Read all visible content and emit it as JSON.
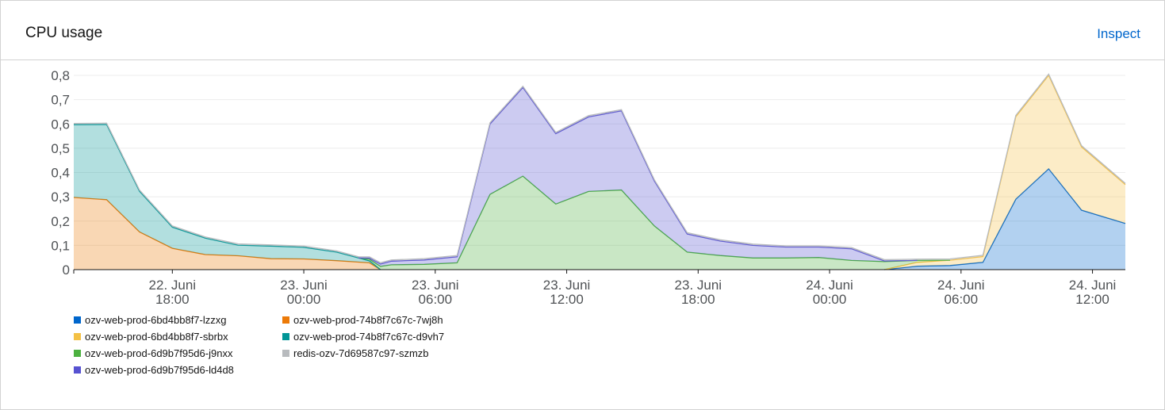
{
  "card": {
    "title": "CPU usage",
    "inspect_label": "Inspect"
  },
  "chart_data": {
    "type": "area",
    "stacked": true,
    "grid": true,
    "ylim": [
      0,
      0.8
    ],
    "y_ticks": [
      "0",
      "0,1",
      "0,2",
      "0,3",
      "0,4",
      "0,5",
      "0,6",
      "0,7",
      "0,8"
    ],
    "x_ticks": [
      {
        "x": 4.5,
        "line1": "22. Juni",
        "line2": "18:00"
      },
      {
        "x": 10.5,
        "line1": "23. Juni",
        "line2": "00:00"
      },
      {
        "x": 16.5,
        "line1": "23. Juni",
        "line2": "06:00"
      },
      {
        "x": 22.5,
        "line1": "23. Juni",
        "line2": "12:00"
      },
      {
        "x": 28.5,
        "line1": "23. Juni",
        "line2": "18:00"
      },
      {
        "x": 34.5,
        "line1": "24. Juni",
        "line2": "00:00"
      },
      {
        "x": 40.5,
        "line1": "24. Juni",
        "line2": "06:00"
      },
      {
        "x": 46.5,
        "line1": "24. Juni",
        "line2": "12:00"
      }
    ],
    "x_range": [
      0,
      48
    ],
    "series": [
      {
        "name": "ozv-web-prod-6bd4bb8f7-lzzxg",
        "color": "#0066cc",
        "points": [
          [
            37,
            0
          ],
          [
            38.5,
            0.014
          ],
          [
            40,
            0.017
          ],
          [
            41.5,
            0.03
          ],
          [
            43,
            0.29
          ],
          [
            44.5,
            0.415
          ],
          [
            46,
            0.245
          ],
          [
            48,
            0.19
          ]
        ]
      },
      {
        "name": "ozv-web-prod-6bd4bb8f7-sbrbx",
        "color": "#f4c145",
        "points": [
          [
            37,
            0
          ],
          [
            38.5,
            0.016
          ],
          [
            40,
            0.022
          ],
          [
            41.5,
            0.024
          ],
          [
            43,
            0.34
          ],
          [
            44.5,
            0.385
          ],
          [
            46,
            0.26
          ],
          [
            48,
            0.16
          ]
        ]
      },
      {
        "name": "ozv-web-prod-6d9b7f95d6-j9nxx",
        "color": "#4cb140",
        "points": [
          [
            13,
            0
          ],
          [
            14.5,
            0.02
          ],
          [
            16,
            0.022
          ],
          [
            17.5,
            0.028
          ],
          [
            19,
            0.31
          ],
          [
            20.5,
            0.385
          ],
          [
            22,
            0.27
          ],
          [
            23.5,
            0.322
          ],
          [
            25,
            0.328
          ],
          [
            26.5,
            0.18
          ],
          [
            28,
            0.072
          ],
          [
            29.5,
            0.058
          ],
          [
            31,
            0.048
          ],
          [
            32.5,
            0.048
          ],
          [
            34,
            0.05
          ],
          [
            35.5,
            0.038
          ],
          [
            37,
            0.033
          ],
          [
            38.5,
            0.008
          ],
          [
            40,
            0
          ]
        ]
      },
      {
        "name": "ozv-web-prod-6d9b7f95d6-ld4d8",
        "color": "#5752d1",
        "points": [
          [
            13,
            0
          ],
          [
            14.5,
            0.015
          ],
          [
            16,
            0.018
          ],
          [
            17.5,
            0.025
          ],
          [
            19,
            0.29
          ],
          [
            20.5,
            0.365
          ],
          [
            22,
            0.29
          ],
          [
            23.5,
            0.307
          ],
          [
            25,
            0.326
          ],
          [
            26.5,
            0.185
          ],
          [
            28,
            0.075
          ],
          [
            29.5,
            0.06
          ],
          [
            31,
            0.052
          ],
          [
            32.5,
            0.045
          ],
          [
            34,
            0.043
          ],
          [
            35.5,
            0.048
          ],
          [
            37,
            0.003
          ],
          [
            38.5,
            0
          ]
        ]
      },
      {
        "name": "ozv-web-prod-74b8f7c67c-7wj8h",
        "color": "#ec7a08",
        "points": [
          [
            0,
            0.297
          ],
          [
            1.5,
            0.288
          ],
          [
            3,
            0.155
          ],
          [
            4.5,
            0.088
          ],
          [
            6,
            0.062
          ],
          [
            7.5,
            0.057
          ],
          [
            9,
            0.045
          ],
          [
            10.5,
            0.044
          ],
          [
            12,
            0.037
          ],
          [
            13.5,
            0.028
          ],
          [
            14,
            0
          ]
        ]
      },
      {
        "name": "ozv-web-prod-74b8f7c67c-d9vh7",
        "color": "#009596",
        "points": [
          [
            0,
            0.3
          ],
          [
            1.5,
            0.31
          ],
          [
            3,
            0.168
          ],
          [
            4.5,
            0.087
          ],
          [
            6,
            0.068
          ],
          [
            7.5,
            0.044
          ],
          [
            9,
            0.052
          ],
          [
            10.5,
            0.048
          ],
          [
            12,
            0.035
          ],
          [
            13.5,
            0.008
          ],
          [
            14,
            0
          ]
        ]
      },
      {
        "name": "redis-ozv-7d69587c97-szmzb",
        "color": "#b8bbbe",
        "points": [
          [
            0,
            0.005
          ],
          [
            48,
            0.005
          ]
        ]
      }
    ],
    "stack_order": [
      0,
      1,
      4,
      5,
      2,
      3,
      6
    ]
  },
  "legend_layout": [
    [
      0,
      4
    ],
    [
      1,
      5
    ],
    [
      2,
      6
    ],
    [
      3
    ]
  ]
}
